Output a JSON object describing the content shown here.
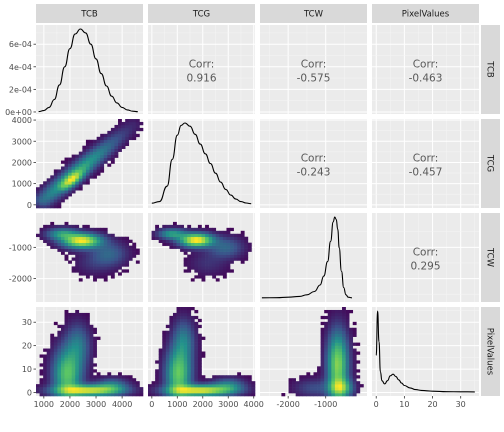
{
  "chart_data": {
    "type": "scatter-matrix",
    "title": "",
    "variables": [
      "TCB",
      "TCG",
      "TCW",
      "PixelValues"
    ],
    "colors": {
      "panel_bg": "#ebebeb",
      "strip_bg": "#d9d9d9",
      "grid_major": "#ffffff",
      "grid_minor": "#f5f5f5",
      "density_line": "#000000",
      "heat_low": "#440154",
      "heat_mid": "#21918c",
      "heat_high": "#fde725"
    },
    "axes": {
      "TCB": {
        "range": [
          700,
          4800
        ],
        "ticks": [
          1000,
          2000,
          3000,
          4000
        ],
        "tick_labels": [
          "1000",
          "2000",
          "3000",
          "4000"
        ]
      },
      "TCG": {
        "range": [
          -150,
          4050
        ],
        "ticks": [
          0,
          1000,
          2000,
          3000,
          4000
        ],
        "tick_labels": [
          "0",
          "1000",
          "2000",
          "3000",
          "4000"
        ]
      },
      "TCW": {
        "range": [
          -2750,
          100
        ],
        "ticks": [
          -2000,
          -1000
        ],
        "tick_labels": [
          "-2000",
          "-1000"
        ]
      },
      "PixelValues": {
        "range": [
          -1.5,
          36.5
        ],
        "ticks": [
          0,
          10,
          20,
          30
        ],
        "tick_labels": [
          "0",
          "10",
          "20",
          "30"
        ]
      },
      "TCB_density": {
        "range": [
          -1.8e-05,
          0.00077
        ],
        "ticks": [
          0,
          0.0002,
          0.0004,
          0.0006
        ],
        "tick_labels": [
          "0e+00",
          "2e-04",
          "4e-04",
          "6e-04"
        ]
      }
    },
    "correlations": [
      {
        "row": "TCB",
        "col": "TCG",
        "label": "Corr:",
        "value": "0.916"
      },
      {
        "row": "TCB",
        "col": "TCW",
        "label": "Corr:",
        "value": "-0.575"
      },
      {
        "row": "TCB",
        "col": "PixelValues",
        "label": "Corr:",
        "value": "-0.463"
      },
      {
        "row": "TCG",
        "col": "TCW",
        "label": "Corr:",
        "value": "-0.243"
      },
      {
        "row": "TCG",
        "col": "PixelValues",
        "label": "Corr:",
        "value": "-0.457"
      },
      {
        "row": "TCW",
        "col": "PixelValues",
        "label": "Corr:",
        "value": "0.295"
      }
    ],
    "densities": {
      "TCB": {
        "x": [
          800,
          1000,
          1200,
          1400,
          1600,
          1800,
          2000,
          2200,
          2400,
          2600,
          2800,
          3000,
          3200,
          3400,
          3600,
          3800,
          4000,
          4200,
          4400,
          4600
        ],
        "y": [
          3e-06,
          1.2e-05,
          4e-05,
          0.00011,
          0.00024,
          0.0004,
          0.00056,
          0.00069,
          0.000735,
          0.0007,
          0.0006,
          0.00047,
          0.00034,
          0.00023,
          0.00014,
          8e-05,
          4e-05,
          1.8e-05,
          7e-06,
          2e-06
        ]
      },
      "TCG": {
        "x": [
          0,
          300,
          600,
          800,
          1000,
          1150,
          1300,
          1500,
          1700,
          1900,
          2100,
          2300,
          2500,
          2700,
          2900,
          3100,
          3300,
          3500,
          3700,
          3900
        ],
        "y": [
          0.01,
          0.03,
          0.22,
          0.55,
          0.85,
          0.97,
          1.0,
          0.96,
          0.86,
          0.74,
          0.62,
          0.5,
          0.38,
          0.27,
          0.18,
          0.11,
          0.06,
          0.03,
          0.012,
          0.004
        ]
      },
      "TCW": {
        "x": [
          -2700,
          -2300,
          -2000,
          -1700,
          -1500,
          -1300,
          -1150,
          -1050,
          -950,
          -870,
          -800,
          -760,
          -720,
          -680,
          -640,
          -580,
          -520,
          -460,
          -400,
          -300
        ],
        "y": [
          0.002,
          0.004,
          0.01,
          0.02,
          0.04,
          0.08,
          0.16,
          0.27,
          0.45,
          0.7,
          0.94,
          1.0,
          0.97,
          0.85,
          0.62,
          0.33,
          0.13,
          0.04,
          0.01,
          0.002
        ]
      },
      "PixelValues": {
        "x": [
          0,
          0.5,
          1,
          1.5,
          2,
          3,
          4,
          5,
          6,
          7,
          8,
          9,
          10,
          12,
          14,
          16,
          18,
          20,
          25,
          30,
          35
        ],
        "y": [
          0.45,
          1.0,
          0.62,
          0.25,
          0.14,
          0.1,
          0.14,
          0.2,
          0.22,
          0.19,
          0.15,
          0.11,
          0.08,
          0.05,
          0.03,
          0.02,
          0.015,
          0.01,
          0.004,
          0.002,
          0.001
        ]
      }
    },
    "heatmaps": [
      {
        "x": "TCB",
        "y": "TCG",
        "bins": 30,
        "kernels": [
          {
            "x0": 1000,
            "y0": 250,
            "x1": 4400,
            "y1": 3750,
            "width": 240,
            "weight": 1.0
          },
          {
            "x0": 1800,
            "y0": 900,
            "x1": 2600,
            "y1": 1700,
            "width": 150,
            "weight": 1.2
          }
        ]
      },
      {
        "x": "TCB",
        "y": "TCW",
        "bins": 30,
        "kernels": [
          {
            "cx": 2450,
            "cy": -780,
            "sx": 480,
            "sy": 150,
            "weight": 1.6
          },
          {
            "cx": 1700,
            "cy": -560,
            "sx": 380,
            "sy": 120,
            "weight": 0.7
          },
          {
            "cx": 3500,
            "cy": -1200,
            "sx": 450,
            "sy": 250,
            "weight": 0.35
          },
          {
            "cx": 2900,
            "cy": -1500,
            "sx": 500,
            "sy": 260,
            "weight": 0.12
          }
        ]
      },
      {
        "x": "TCG",
        "y": "TCW",
        "bins": 30,
        "kernels": [
          {
            "cx": 1750,
            "cy": -760,
            "sx": 420,
            "sy": 140,
            "weight": 1.6
          },
          {
            "cx": 800,
            "cy": -560,
            "sx": 350,
            "sy": 110,
            "weight": 0.7
          },
          {
            "cx": 2900,
            "cy": -1000,
            "sx": 450,
            "sy": 220,
            "weight": 0.35
          },
          {
            "cx": 2200,
            "cy": -1500,
            "sx": 500,
            "sy": 260,
            "weight": 0.12
          }
        ]
      },
      {
        "x": "TCB",
        "y": "PixelValues",
        "bins": 30,
        "kernels": [
          {
            "cx": 1900,
            "cy": 8,
            "sx": 350,
            "sy": 7,
            "weight": 1.0
          },
          {
            "cx": 2300,
            "cy": 20,
            "sx": 300,
            "sy": 6,
            "weight": 0.45
          },
          {
            "cx": 2700,
            "cy": 1,
            "sx": 800,
            "sy": 1.5,
            "weight": 1.4
          },
          {
            "cx": 3600,
            "cy": 3,
            "sx": 400,
            "sy": 2,
            "weight": 0.5
          }
        ]
      },
      {
        "x": "TCG",
        "y": "PixelValues",
        "bins": 30,
        "kernels": [
          {
            "cx": 1050,
            "cy": 8,
            "sx": 320,
            "sy": 7,
            "weight": 1.0
          },
          {
            "cx": 1250,
            "cy": 22,
            "sx": 280,
            "sy": 6,
            "weight": 0.45
          },
          {
            "cx": 1900,
            "cy": 1,
            "sx": 800,
            "sy": 1.5,
            "weight": 1.4
          },
          {
            "cx": 3000,
            "cy": 3,
            "sx": 420,
            "sy": 2,
            "weight": 0.5
          }
        ]
      },
      {
        "x": "TCW",
        "y": "PixelValues",
        "bins": 30,
        "kernels": [
          {
            "cx": -680,
            "cy": 12,
            "sx": 180,
            "sy": 9,
            "weight": 1.3
          },
          {
            "cx": -600,
            "cy": 2,
            "sx": 200,
            "sy": 2.5,
            "weight": 1.0
          },
          {
            "cx": -1300,
            "cy": 2,
            "sx": 350,
            "sy": 2.5,
            "weight": 0.25
          }
        ]
      }
    ]
  }
}
